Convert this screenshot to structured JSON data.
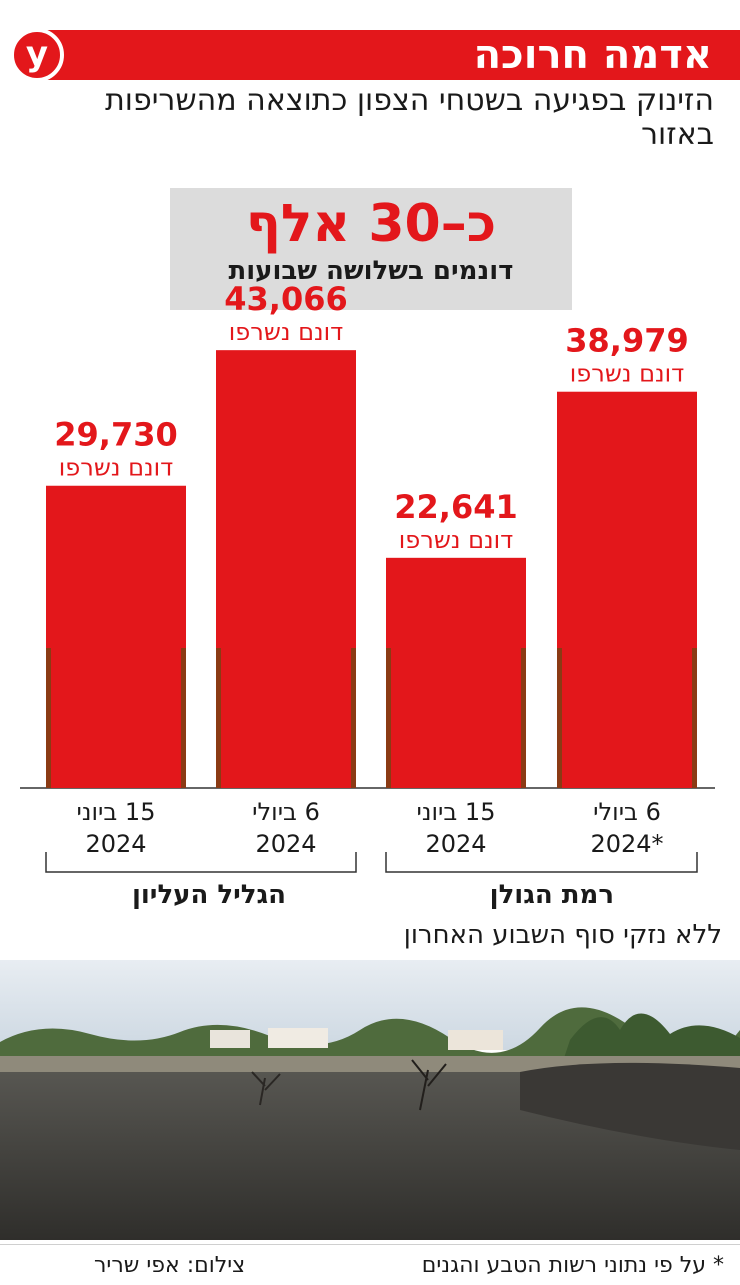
{
  "header": {
    "title": "אדמה חרוכה",
    "logo_letter": "y",
    "subtitle": "הזינוק בפגיעה בשטחי הצפון כתוצאה מהשריפות באזור"
  },
  "highlight": {
    "value": "כ–30 אלף",
    "label": "דונמים בשלושה שבועות"
  },
  "chart_data": {
    "type": "bar",
    "unit_label": "דונם נשרפו",
    "groups": [
      {
        "name": "הגליל העליון",
        "bars": [
          {
            "date_line1": "15 ביוני",
            "date_line2": "2024",
            "value": 29730,
            "value_label": "29,730"
          },
          {
            "date_line1": "6 ביולי",
            "date_line2": "2024",
            "value": 43066,
            "value_label": "43,066"
          }
        ]
      },
      {
        "name": "רמת הגולן",
        "bars": [
          {
            "date_line1": "15 ביוני",
            "date_line2": "2024",
            "value": 22641,
            "value_label": "22,641"
          },
          {
            "date_line1": "6 ביולי",
            "date_line2": "2024*",
            "value": 38979,
            "value_label": "38,979"
          }
        ]
      }
    ],
    "ylim": [
      0,
      48000
    ]
  },
  "note": "ללא נזקי סוף השבוע האחרון",
  "footer": {
    "source": "* על פי נתוני רשות הטבע והגנים",
    "photo_credit": "צילום: אפי שריר"
  },
  "colors": {
    "accent": "#e3171b",
    "bar_edge": "#8b3a14",
    "text": "#1a1a1a",
    "highlight_bg": "#dcdcdc"
  }
}
